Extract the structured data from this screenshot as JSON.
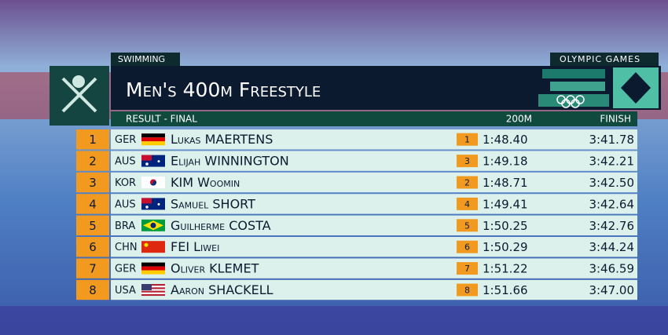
{
  "header": {
    "sport": "SWIMMING",
    "brand": "OLYMPIC GAMES",
    "title": "Men's 400m Freestyle"
  },
  "table": {
    "caption": "RESULT - FINAL",
    "columns": [
      "200M",
      "FINISH"
    ],
    "rows": [
      {
        "rank": "1",
        "country": "GER",
        "name": "Lukas MAERTENS",
        "split_rank": "1",
        "split": "1:48.40",
        "finish": "3:41.78"
      },
      {
        "rank": "2",
        "country": "AUS",
        "name": "Elijah WINNINGTON",
        "split_rank": "3",
        "split": "1:49.18",
        "finish": "3:42.21"
      },
      {
        "rank": "3",
        "country": "KOR",
        "name": "KIM Woomin",
        "split_rank": "2",
        "split": "1:48.71",
        "finish": "3:42.50"
      },
      {
        "rank": "4",
        "country": "AUS",
        "name": "Samuel SHORT",
        "split_rank": "4",
        "split": "1:49.41",
        "finish": "3:42.64"
      },
      {
        "rank": "5",
        "country": "BRA",
        "name": "Guilherme COSTA",
        "split_rank": "5",
        "split": "1:50.25",
        "finish": "3:42.76"
      },
      {
        "rank": "6",
        "country": "CHN",
        "name": "FEI Liwei",
        "split_rank": "6",
        "split": "1:50.29",
        "finish": "3:44.24"
      },
      {
        "rank": "7",
        "country": "GER",
        "name": "Oliver KLEMET",
        "split_rank": "7",
        "split": "1:51.22",
        "finish": "3:46.59"
      },
      {
        "rank": "8",
        "country": "USA",
        "name": "Aaron SHACKELL",
        "split_rank": "8",
        "split": "1:51.66",
        "finish": "3:47.00"
      }
    ]
  }
}
